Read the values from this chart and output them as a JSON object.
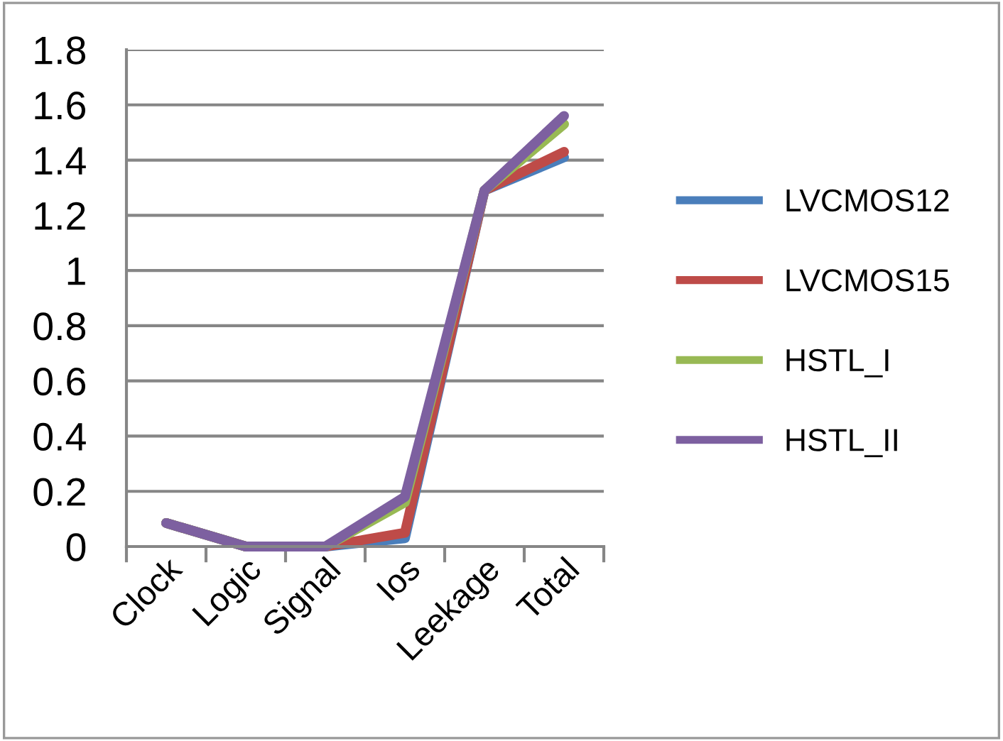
{
  "chart_data": {
    "type": "line",
    "categories": [
      "Clock",
      "Logic",
      "Signal",
      "Ios",
      "Leekage",
      "Total"
    ],
    "series": [
      {
        "name": "LVCMOS12",
        "color": "#4a7ebb",
        "values": [
          0.085,
          0,
          0,
          0.03,
          1.29,
          1.41
        ]
      },
      {
        "name": "LVCMOS15",
        "color": "#be4b48",
        "values": [
          0.085,
          0,
          0,
          0.05,
          1.29,
          1.43
        ]
      },
      {
        "name": "HSTL_I",
        "color": "#98b954",
        "values": [
          0.085,
          0,
          0,
          0.16,
          1.29,
          1.53
        ]
      },
      {
        "name": "HSTL_II",
        "color": "#7d60a0",
        "values": [
          0.085,
          0,
          0,
          0.18,
          1.29,
          1.56
        ]
      }
    ],
    "ylim": [
      0,
      1.8
    ],
    "yticks": [
      0,
      0.2,
      0.4,
      0.6,
      0.8,
      1,
      1.2,
      1.4,
      1.6,
      1.8
    ],
    "grid": "y",
    "legend": "right",
    "marker": "none",
    "line_style": "solid"
  }
}
